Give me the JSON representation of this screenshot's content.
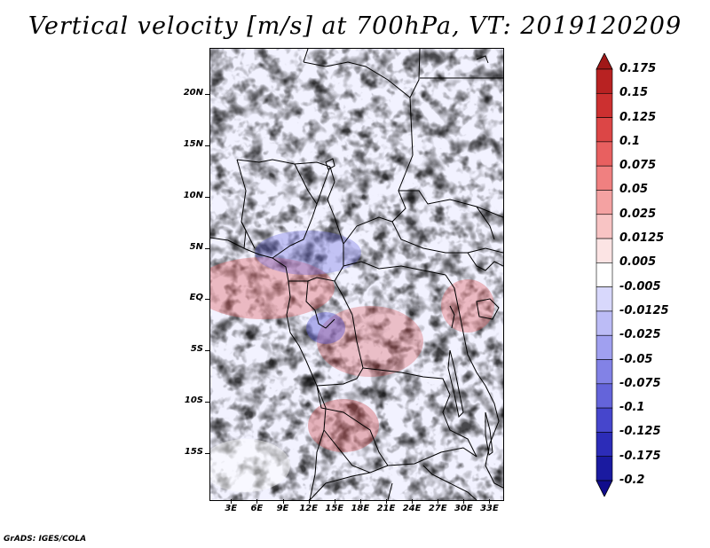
{
  "title": "Vertical velocity [m/s] at 700hPa, VT: 2019120209",
  "credit": "GrADS: IGES/COLA",
  "map": {
    "lat_labels": [
      "20N",
      "15N",
      "10N",
      "5N",
      "EQ",
      "5S",
      "10S",
      "15S"
    ],
    "lat_values": [
      20,
      15,
      10,
      5,
      0,
      -5,
      -10,
      -15
    ],
    "lon_labels": [
      "3E",
      "6E",
      "9E",
      "12E",
      "15E",
      "18E",
      "21E",
      "24E",
      "27E",
      "30E",
      "33E"
    ],
    "lon_values": [
      3,
      6,
      9,
      12,
      15,
      18,
      21,
      24,
      27,
      30,
      33
    ],
    "lon_range": [
      0.5,
      34.5
    ],
    "lat_range": [
      -19.5,
      24.5
    ]
  },
  "colorbar": {
    "labels": [
      "0.175",
      "0.15",
      "0.125",
      "0.1",
      "0.075",
      "0.05",
      "0.025",
      "0.0125",
      "0.005",
      "-0.005",
      "-0.0125",
      "-0.025",
      "-0.05",
      "-0.075",
      "-0.1",
      "-0.125",
      "-0.175",
      "-0.2"
    ],
    "colors": [
      "#a01818",
      "#b82222",
      "#cc3030",
      "#dc4646",
      "#e86060",
      "#f08080",
      "#f4a2a2",
      "#f8c4c4",
      "#fce4e4",
      "#ffffff",
      "#d8d8fc",
      "#bcbcf6",
      "#a0a0f0",
      "#8282e6",
      "#6464da",
      "#4646cc",
      "#2c2cb8",
      "#1a1aa0",
      "#100c8c"
    ]
  }
}
